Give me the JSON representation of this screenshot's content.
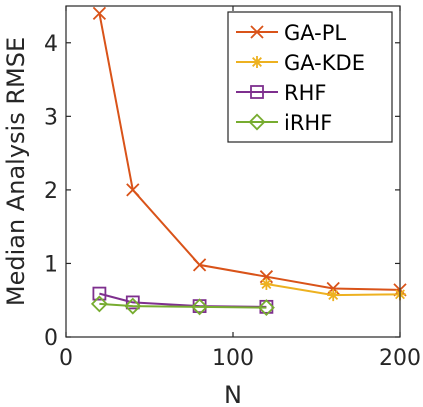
{
  "chart_data": {
    "type": "line",
    "xlabel": "N",
    "ylabel": "Median Analysis RMSE",
    "xlim": [
      0,
      200
    ],
    "ylim": [
      0,
      4.5
    ],
    "xticks": [
      0,
      100,
      200
    ],
    "yticks": [
      0,
      1,
      2,
      3,
      4
    ],
    "grid": false,
    "legend_position": "top-right",
    "series": [
      {
        "name": "GA-PL",
        "color": "#d95319",
        "marker": "x",
        "x": [
          20,
          40,
          80,
          120,
          160,
          200
        ],
        "y": [
          4.4,
          2.0,
          0.98,
          0.82,
          0.66,
          0.64
        ]
      },
      {
        "name": "GA-KDE",
        "color": "#edb120",
        "marker": "asterisk",
        "x": [
          120,
          160,
          200
        ],
        "y": [
          0.72,
          0.57,
          0.58
        ]
      },
      {
        "name": "RHF",
        "color": "#7e2f8e",
        "marker": "square",
        "x": [
          20,
          40,
          80,
          120
        ],
        "y": [
          0.59,
          0.47,
          0.42,
          0.41
        ]
      },
      {
        "name": "iRHF",
        "color": "#77ac30",
        "marker": "diamond",
        "x": [
          20,
          40,
          80,
          120
        ],
        "y": [
          0.45,
          0.42,
          0.41,
          0.4
        ]
      }
    ]
  }
}
